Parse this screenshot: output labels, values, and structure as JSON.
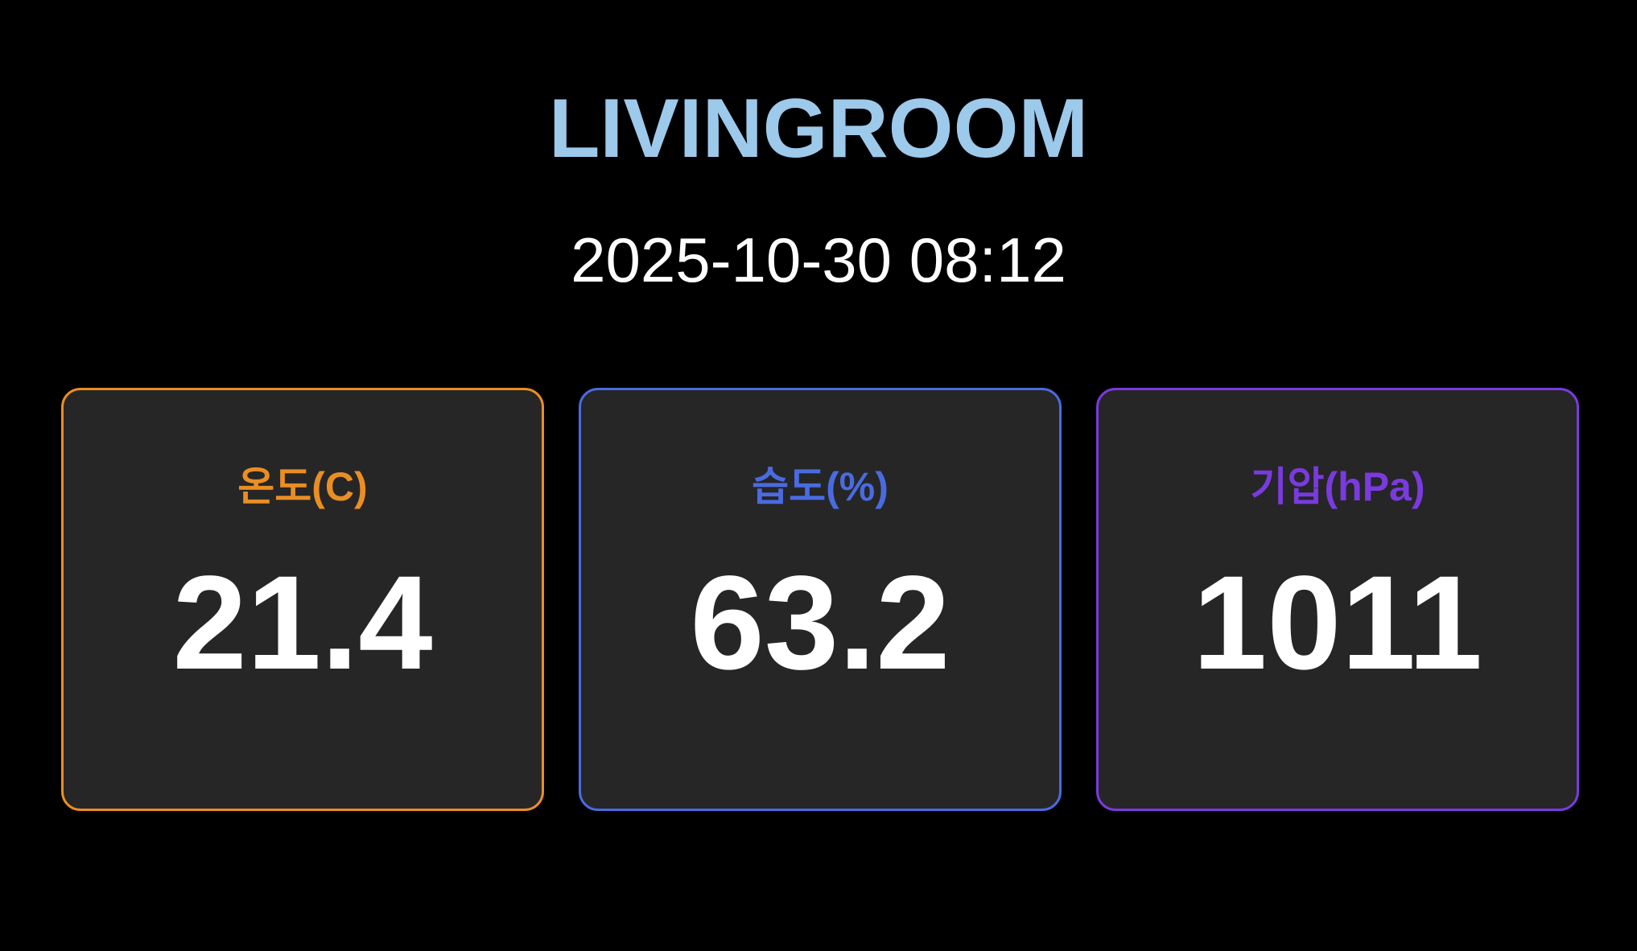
{
  "header": {
    "title": "LIVINGROOM",
    "datetime": "2025-10-30 08:12"
  },
  "colors": {
    "title": "#9dc9eb",
    "card_background": "#262626",
    "page_background": "#000000"
  },
  "cards": [
    {
      "label": "온도(C)",
      "value": "21.4",
      "accent": "#e98e25"
    },
    {
      "label": "습도(%)",
      "value": "63.2",
      "accent": "#4a6be0"
    },
    {
      "label": "기압(hPa)",
      "value": "1011",
      "accent": "#7a3ae0"
    }
  ]
}
